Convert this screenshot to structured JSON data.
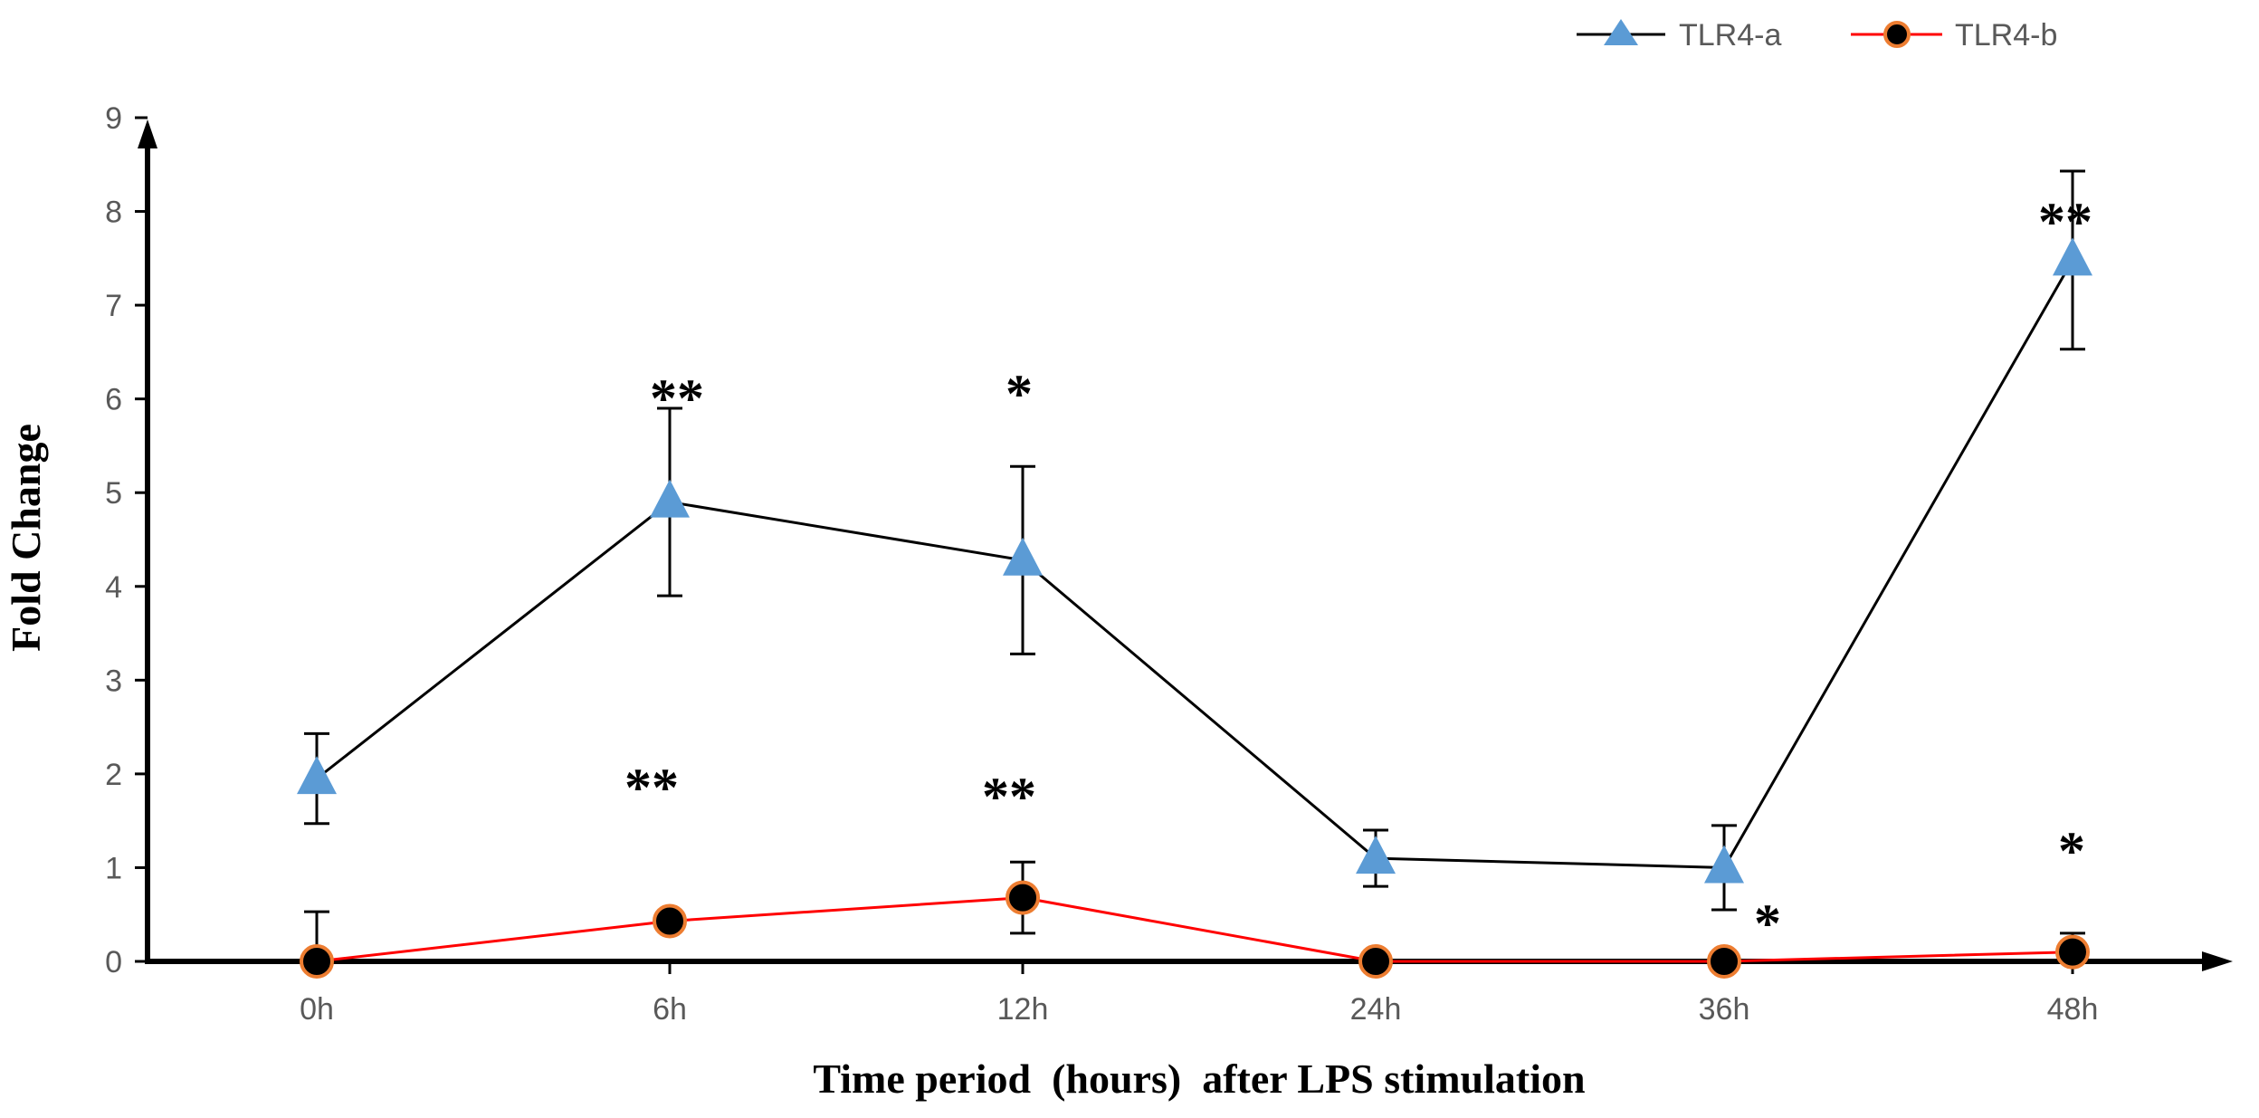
{
  "chart_data": {
    "type": "line",
    "xlabel": "Time period  (hours)  after LPS stimulation",
    "ylabel": "Fold Change",
    "categories": [
      "0h",
      "6h",
      "12h",
      "24h",
      "36h",
      "48h"
    ],
    "ylim": [
      0,
      9
    ],
    "yticks": [
      0,
      1,
      2,
      3,
      4,
      5,
      6,
      7,
      8,
      9
    ],
    "grid": false,
    "legend_position": "top-right",
    "series": [
      {
        "name": "TLR4-a",
        "values": [
          1.95,
          4.9,
          4.28,
          1.1,
          1.0,
          7.48
        ],
        "errors": [
          0.48,
          1.0,
          1.0,
          0.3,
          0.45,
          0.95
        ],
        "line_color": "#000000",
        "marker": "triangle",
        "marker_color": "#5B9BD5",
        "significance": [
          "",
          "**",
          "*",
          "",
          "",
          "**"
        ]
      },
      {
        "name": "TLR4-b",
        "values": [
          0.0,
          0.43,
          0.68,
          0.0,
          0.0,
          0.1
        ],
        "errors": [
          0.53,
          0.0,
          0.38,
          0.0,
          0.0,
          0.2
        ],
        "line_color": "#FF0000",
        "marker": "circle",
        "marker_color": "#000000",
        "marker_edge_color": "#ED7D31",
        "significance": [
          "",
          "**",
          "**",
          "",
          "*",
          "*"
        ]
      }
    ]
  }
}
